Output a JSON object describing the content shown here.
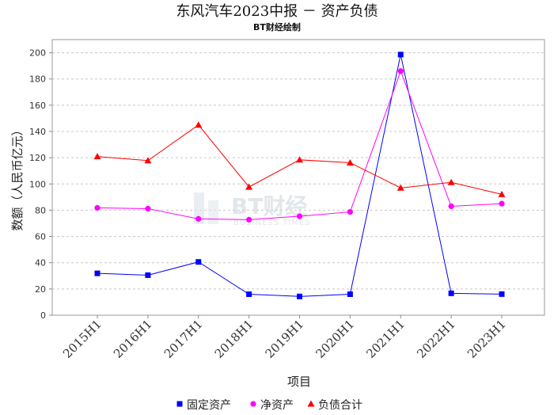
{
  "chart_data": {
    "type": "line",
    "title": "东风汽车2023中报 － 资产负债",
    "subtitle": "BT财经绘制",
    "xlabel": "项目",
    "ylabel": "数额（人民币亿元）",
    "categories": [
      "2015H1",
      "2016H1",
      "2017H1",
      "2018H1",
      "2019H1",
      "2020H1",
      "2021H1",
      "2022H1",
      "2023H1"
    ],
    "ylim": [
      0,
      210
    ],
    "yticks": [
      0,
      20,
      40,
      60,
      80,
      100,
      120,
      140,
      160,
      180,
      200
    ],
    "grid": true,
    "legend_position": "bottom",
    "series": [
      {
        "name": "固定资产",
        "color": "#0000ff",
        "marker": "square",
        "values": [
          31.9,
          30.5,
          40.6,
          16.0,
          14.3,
          16.0,
          198.6,
          16.7,
          16.1
        ]
      },
      {
        "name": "净资产",
        "color": "#ff00ff",
        "marker": "circle",
        "values": [
          81.8,
          81.2,
          73.4,
          72.8,
          75.4,
          78.7,
          186.0,
          83.0,
          85.0
        ]
      },
      {
        "name": "负债合计",
        "color": "#ff0000",
        "marker": "triangle",
        "values": [
          120.9,
          117.8,
          145.0,
          97.7,
          118.4,
          116.2,
          97.0,
          101.2,
          92.1
        ]
      }
    ],
    "watermark": {
      "text": "BT财经",
      "subtext": "BUSINESS TIMES"
    }
  }
}
